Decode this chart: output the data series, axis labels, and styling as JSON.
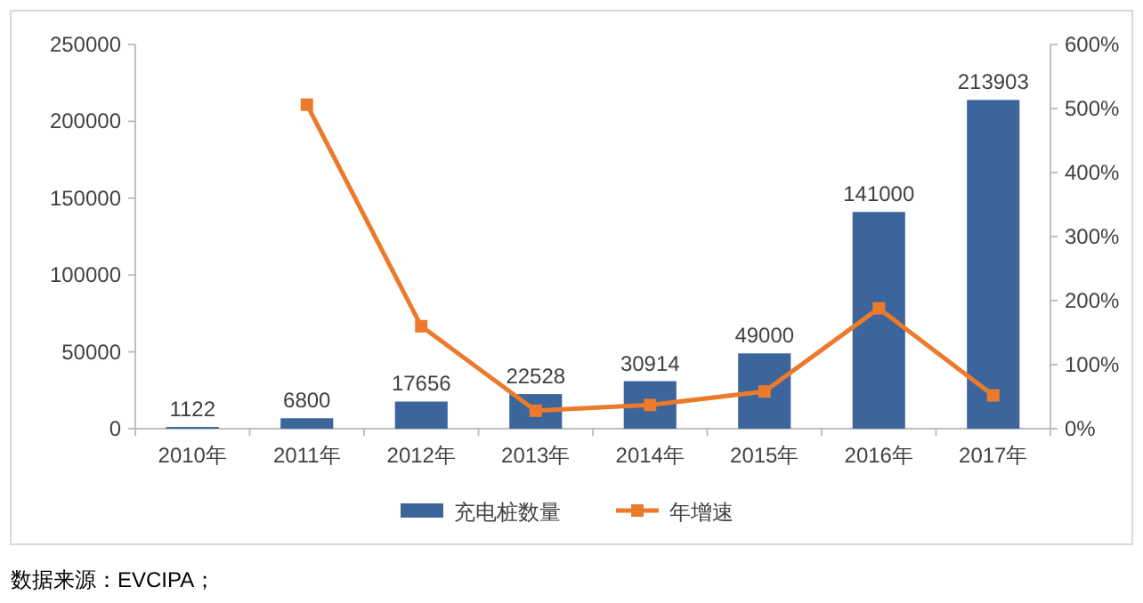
{
  "chart_data": {
    "type": "bar",
    "categories": [
      "2010年",
      "2011年",
      "2012年",
      "2013年",
      "2014年",
      "2015年",
      "2016年",
      "2017年"
    ],
    "series": [
      {
        "name": "充电桩数量",
        "color": "#3b659b",
        "values": [
          1122,
          6800,
          17656,
          22528,
          30914,
          49000,
          141000,
          213903
        ],
        "value_labels": [
          "1122",
          "6800",
          "17656",
          "22528",
          "30914",
          "49000",
          "141000",
          "213903"
        ]
      },
      {
        "name": "年增速",
        "type": "line",
        "axis": "y2",
        "color": "#ec7a2c",
        "values": [
          null,
          506,
          160,
          28,
          37,
          58,
          188,
          52
        ]
      }
    ],
    "marker": "square",
    "ylim": [
      0,
      250000
    ],
    "yticks": [
      0,
      50000,
      100000,
      150000,
      200000,
      250000
    ],
    "y2lim": [
      0,
      600
    ],
    "y2ticks": [
      {
        "value": 0,
        "label": "0%"
      },
      {
        "value": 100,
        "label": "100%"
      },
      {
        "value": 200,
        "label": "200%"
      },
      {
        "value": 300,
        "label": "300%"
      },
      {
        "value": 400,
        "label": "400%"
      },
      {
        "value": 500,
        "label": "500%"
      },
      {
        "value": 600,
        "label": "600%"
      }
    ],
    "grid": false,
    "legend": "bottom",
    "annotations": [
      "数据来源：EVCIPA；"
    ]
  }
}
